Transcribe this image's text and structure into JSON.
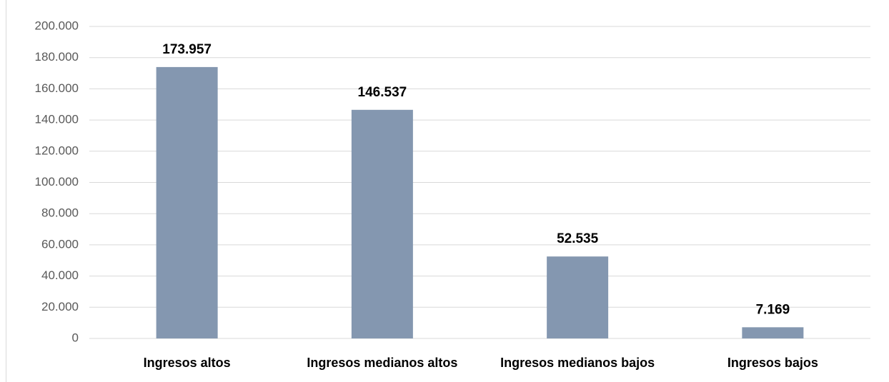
{
  "chart_data": {
    "type": "bar",
    "categories": [
      "Ingresos altos",
      "Ingresos medianos altos",
      "Ingresos medianos bajos",
      "Ingresos bajos"
    ],
    "values": [
      173957,
      146537,
      52535,
      7169
    ],
    "value_labels": [
      "173.957",
      "146.537",
      "52.535",
      "7.169"
    ],
    "color": "#8497b0",
    "ylim": [
      0,
      200000
    ],
    "yticks": [
      0,
      {
        "value": 20000,
        "label": "20.000"
      },
      {
        "value": 40000,
        "label": "40.000"
      },
      {
        "value": 60000,
        "label": "60.000"
      },
      {
        "value": 80000,
        "label": "80.000"
      },
      {
        "value": 100000,
        "label": "100.000"
      },
      {
        "value": 120000,
        "label": "120.000"
      },
      {
        "value": 140000,
        "label": "140.000"
      },
      {
        "value": 160000,
        "label": "160.000"
      },
      {
        "value": 180000,
        "label": "180.000"
      },
      {
        "value": 200000,
        "label": "200.000"
      }
    ],
    "grid": true
  }
}
